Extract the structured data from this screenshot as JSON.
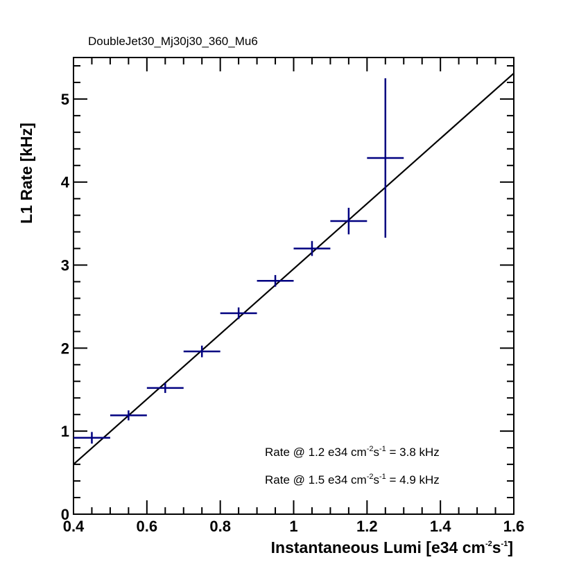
{
  "chart_data": {
    "type": "scatter",
    "title": "DoubleJet30_Mj30j30_360_Mu6",
    "xlabel": {
      "pre": "Instantaneous Lumi [e34 cm",
      "sup1": "-2",
      "mid": "s",
      "sup2": "-1",
      "post": "]"
    },
    "ylabel": "L1 Rate [kHz]",
    "xlim": [
      0.4,
      1.6
    ],
    "ylim": [
      0,
      5.5
    ],
    "x_ticks": [
      0.4,
      0.6,
      0.8,
      1.0,
      1.2,
      1.4,
      1.6
    ],
    "x_tick_labels": [
      "0.4",
      "0.6",
      "0.8",
      "1",
      "1.2",
      "1.4",
      "1.6"
    ],
    "y_ticks": [
      0,
      1,
      2,
      3,
      4,
      5
    ],
    "y_tick_labels": [
      "0",
      "1",
      "2",
      "3",
      "4",
      "5"
    ],
    "grid": false,
    "series": [
      {
        "color": "#000080",
        "points": [
          {
            "x": 0.45,
            "x_err": 0.05,
            "y": 0.92,
            "y_err": 0.07
          },
          {
            "x": 0.55,
            "x_err": 0.05,
            "y": 1.19,
            "y_err": 0.06
          },
          {
            "x": 0.65,
            "x_err": 0.05,
            "y": 1.52,
            "y_err": 0.06
          },
          {
            "x": 0.75,
            "x_err": 0.05,
            "y": 1.96,
            "y_err": 0.07
          },
          {
            "x": 0.85,
            "x_err": 0.05,
            "y": 2.42,
            "y_err": 0.07
          },
          {
            "x": 0.95,
            "x_err": 0.05,
            "y": 2.81,
            "y_err": 0.07
          },
          {
            "x": 1.05,
            "x_err": 0.05,
            "y": 3.2,
            "y_err": 0.09
          },
          {
            "x": 1.15,
            "x_err": 0.05,
            "y": 3.53,
            "y_err": 0.16
          },
          {
            "x": 1.25,
            "x_err": 0.05,
            "y": 4.29,
            "y_err": 0.96
          }
        ]
      }
    ],
    "fit": {
      "type": "linear",
      "color": "#000000",
      "x": [
        0.4,
        1.6
      ],
      "y": [
        0.6,
        5.31
      ]
    },
    "annotations": [
      {
        "pre": "Rate @ 1.2 e34 cm",
        "sup1": "-2",
        "mid": "s",
        "sup2": "-1",
        "post": " = 3.8 kHz"
      },
      {
        "pre": "Rate @ 1.5 e34 cm",
        "sup1": "-2",
        "mid": "s",
        "sup2": "-1",
        "post": " = 4.9 kHz"
      }
    ]
  }
}
